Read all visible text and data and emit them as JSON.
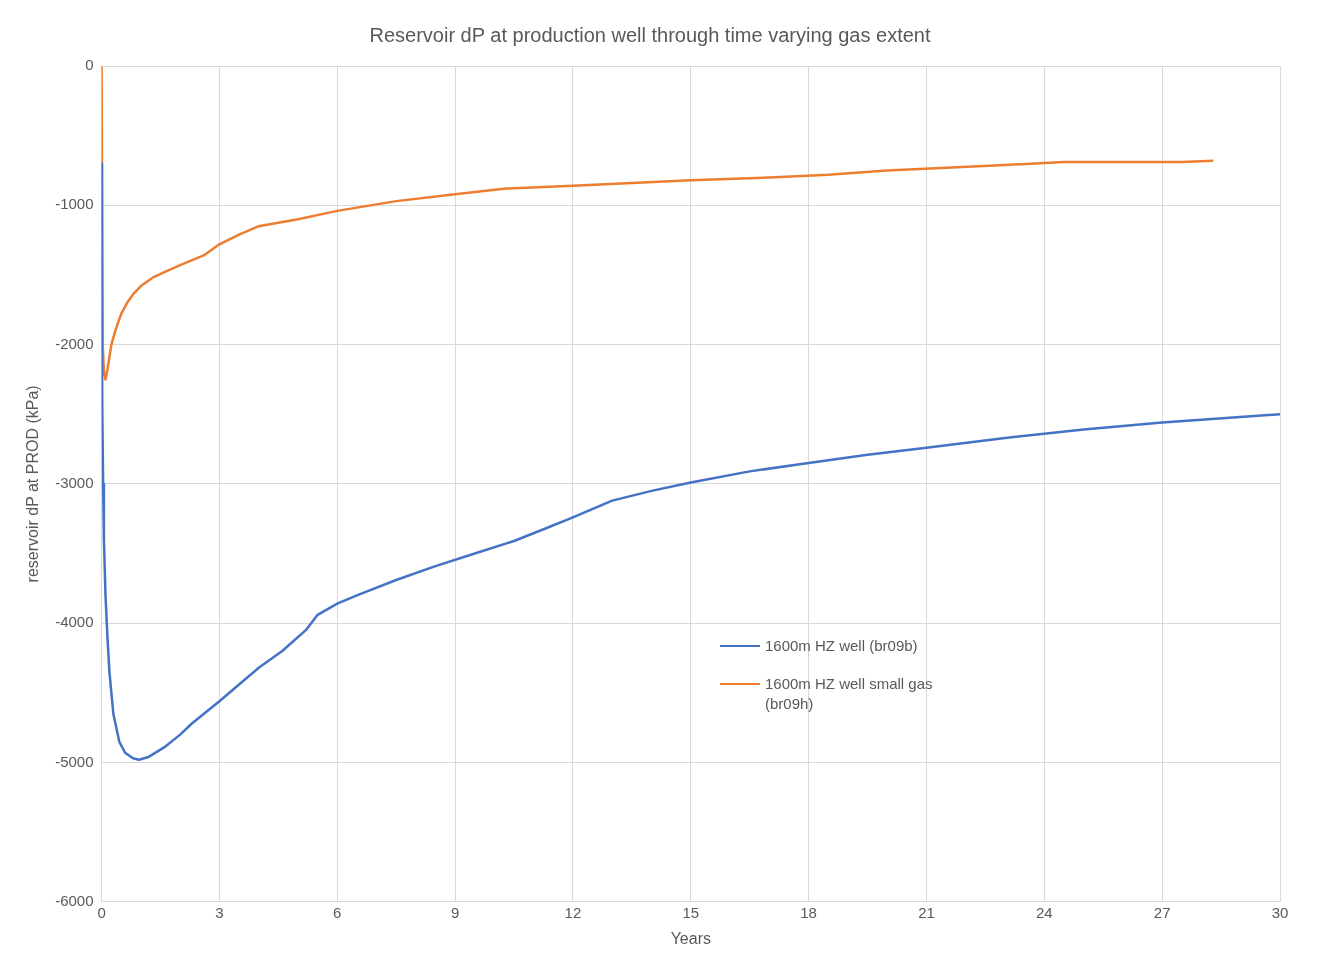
{
  "chart_data": {
    "type": "line",
    "title": "Reservoir dP at production well through time varying gas extent",
    "xlabel": "Years",
    "ylabel": "reservoir dP at PROD (kPa)",
    "xlim": [
      0,
      30
    ],
    "xticks": [
      0,
      3,
      6,
      9,
      12,
      15,
      18,
      21,
      24,
      27,
      30
    ],
    "ylim": [
      -6000,
      0
    ],
    "yticks": [
      -6000,
      -5000,
      -4000,
      -3000,
      -2000,
      -1000,
      0
    ],
    "grid": true,
    "legend": "right",
    "marker": "none",
    "line_style": "solid",
    "series": [
      {
        "name": "1600m HZ well (br09b)",
        "color": "#4472c4",
        "x": [
          0,
          0.01,
          0.02,
          0.04,
          0.06,
          0.1,
          0.15,
          0.2,
          0.3,
          0.45,
          0.6,
          0.8,
          0.95,
          1.2,
          1.6,
          2,
          2.3,
          3,
          3.5,
          4,
          4.6,
          5.2,
          5.5,
          6,
          6.5,
          7.5,
          8.5,
          9.5,
          10.5,
          11.3,
          12,
          13,
          14,
          15,
          16.5,
          18,
          19.5,
          21,
          23,
          25,
          27,
          30
        ],
        "values": [
          -700,
          -2000,
          -2500,
          -3000,
          -3400,
          -3800,
          -4100,
          -4350,
          -4650,
          -4850,
          -4930,
          -4970,
          -4980,
          -4960,
          -4890,
          -4800,
          -4720,
          -4560,
          -4440,
          -4320,
          -4200,
          -4050,
          -3940,
          -3860,
          -3800,
          -3690,
          -3590,
          -3500,
          -3410,
          -3320,
          -3240,
          -3120,
          -3050,
          -2990,
          -2910,
          -2850,
          -2790,
          -2740,
          -2670,
          -2610,
          -2560,
          -2500
        ]
      },
      {
        "name": "1600m HZ well small gas (br09h)",
        "color": "#ed7d31",
        "x": [
          0,
          0.01,
          0.03,
          0.06,
          0.1,
          0.15,
          0.25,
          0.35,
          0.5,
          0.65,
          0.8,
          1,
          1.3,
          1.6,
          2,
          2.6,
          3,
          3.5,
          4,
          5,
          6,
          7.5,
          9,
          10.3,
          12,
          13.5,
          15,
          17,
          18.5,
          20,
          21.5,
          23,
          24.5,
          26,
          27.5,
          28.3
        ],
        "values": [
          0,
          null,
          -2000,
          -2200,
          -2250,
          -2180,
          -2000,
          -1900,
          -1780,
          -1700,
          -1640,
          -1580,
          -1520,
          -1480,
          -1430,
          -1360,
          -1280,
          -1210,
          -1150,
          -1100,
          -1040,
          -970,
          -920,
          -880,
          -860,
          -840,
          -820,
          -800,
          -780,
          -750,
          -730,
          -710,
          -690,
          -690,
          -690,
          -680
        ]
      }
    ]
  }
}
